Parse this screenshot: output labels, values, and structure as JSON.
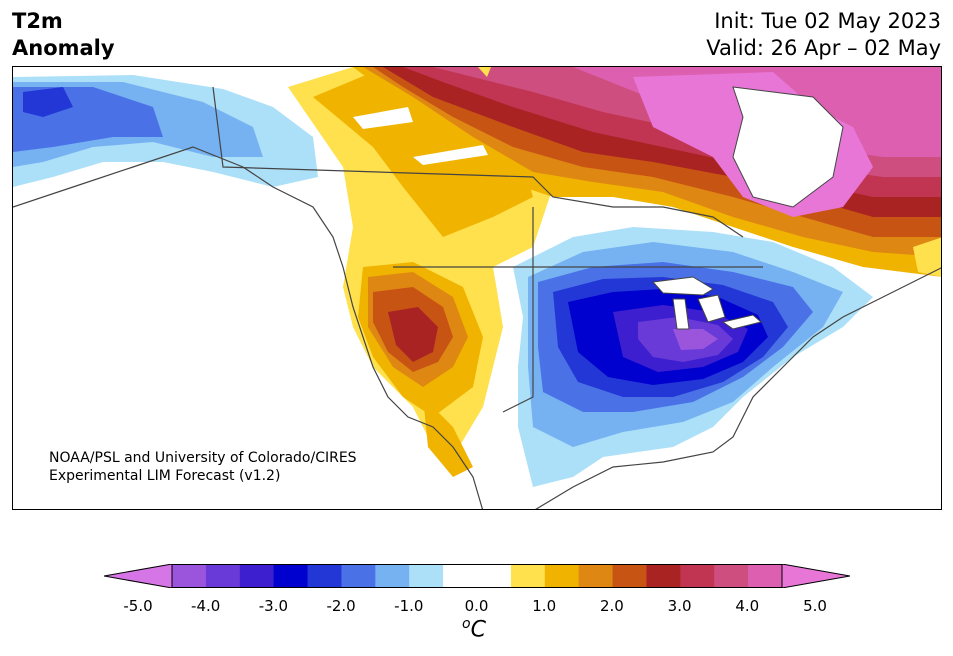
{
  "header": {
    "title_line1": "T2m",
    "title_line2": "Anomaly",
    "init": "Init: Tue 02 May 2023",
    "valid": "Valid: 26 Apr – 02 May"
  },
  "credit": {
    "line1": "NOAA/PSL and University of Colorado/CIRES",
    "line2": "Experimental LIM Forecast (v1.2)"
  },
  "colorbar": {
    "unit_base": "C",
    "unit_sup": "o",
    "ticks": [
      "-5.0",
      "-4.0",
      "-3.0",
      "-2.0",
      "-1.0",
      "0.0",
      "1.0",
      "2.0",
      "3.0",
      "4.0",
      "5.0"
    ],
    "colors": [
      "#d675e6",
      "#9b55dd",
      "#6a3ad8",
      "#3d1fcf",
      "#0000cf",
      "#2336d6",
      "#4a72e6",
      "#76b2f2",
      "#ace0f8",
      "#ffffff",
      "#ffffff",
      "#ffe04d",
      "#f0b400",
      "#de8713",
      "#c85414",
      "#aa2323",
      "#c23552",
      "#cf4e80",
      "#dc5fb0",
      "#e776d6"
    ]
  }
}
